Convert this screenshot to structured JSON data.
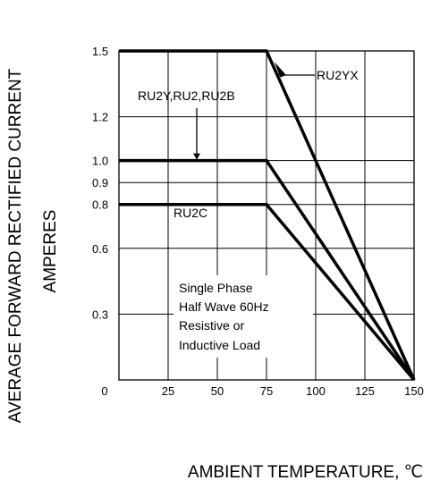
{
  "chart_data": {
    "type": "line",
    "title": "",
    "xlabel": "AMBIENT TEMPERATURE, ℃",
    "ylabel_line1": "AVERAGE FORWARD RECTIFIED CURRENT",
    "ylabel_line2": "AMPERES",
    "xlim": [
      0,
      150
    ],
    "ylim": [
      0,
      1.5
    ],
    "grid": true,
    "x_ticks": [
      {
        "value": 0,
        "label": "0"
      },
      {
        "value": 25,
        "label": "25"
      },
      {
        "value": 50,
        "label": "50"
      },
      {
        "value": 75,
        "label": "75"
      },
      {
        "value": 100,
        "label": "100"
      },
      {
        "value": 125,
        "label": "125"
      },
      {
        "value": 150,
        "label": "150"
      }
    ],
    "y_ticks": [
      {
        "value": 0.3,
        "label": "0.3"
      },
      {
        "value": 0.6,
        "label": "0.6"
      },
      {
        "value": 0.8,
        "label": "0.8"
      },
      {
        "value": 0.9,
        "label": "0.9"
      },
      {
        "value": 1.0,
        "label": "1.0"
      },
      {
        "value": 1.2,
        "label": "1.2"
      },
      {
        "value": 1.5,
        "label": "1.5"
      }
    ],
    "series": [
      {
        "name": "RU2YX",
        "x": [
          0,
          75,
          150
        ],
        "y": [
          1.5,
          1.5,
          0
        ]
      },
      {
        "name": "RU2Y,RU2,RU2B",
        "x": [
          0,
          75,
          150
        ],
        "y": [
          1.0,
          1.0,
          0
        ]
      },
      {
        "name": "RU2C",
        "x": [
          0,
          75,
          150
        ],
        "y": [
          0.8,
          0.8,
          0
        ]
      }
    ],
    "annotations": {
      "note_lines": [
        "Single Phase",
        "Half Wave 60Hz",
        "Resistive or",
        "Inductive Load"
      ]
    }
  }
}
